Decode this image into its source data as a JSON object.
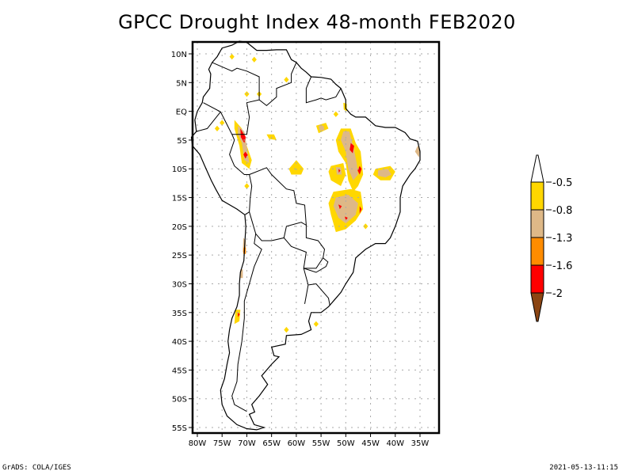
{
  "title": "GPCC Drought Index 48-month FEB2020",
  "footer": {
    "left": "GrADS: COLA/IGES",
    "right": "2021-05-13-11:15"
  },
  "map": {
    "region": "South America",
    "lon_range": [
      -81,
      -31
    ],
    "lat_range": [
      -57,
      12
    ],
    "y_ticks": [
      "10N",
      "5N",
      "EQ",
      "5S",
      "10S",
      "15S",
      "20S",
      "25S",
      "30S",
      "35S",
      "40S",
      "45S",
      "50S",
      "55S"
    ],
    "y_tick_values": [
      10,
      5,
      0,
      -5,
      -10,
      -15,
      -20,
      -25,
      -30,
      -35,
      -40,
      -45,
      -50,
      -55
    ],
    "x_ticks": [
      "80W",
      "75W",
      "70W",
      "65W",
      "60W",
      "55W",
      "50W",
      "45W",
      "40W",
      "35W"
    ],
    "x_tick_values": [
      -80,
      -75,
      -70,
      -65,
      -60,
      -55,
      -50,
      -45,
      -40,
      -35
    ],
    "grid": "dotted"
  },
  "colorbar": {
    "labels": [
      "-0.5",
      "-0.8",
      "-1.3",
      "-1.6",
      "-2"
    ],
    "colors": {
      "above_-0.5": "#ffffff",
      "-0.8_to_-0.5": "#ffd700",
      "-1.3_to_-0.8": "#deb887",
      "-1.6_to_-1.3": "#ff8c00",
      "-2_to_-1.6": "#ff0000",
      "below_-2": "#8b4513"
    }
  },
  "drought_areas": [
    {
      "lon": -70.5,
      "lat": -4.5,
      "class": "red"
    },
    {
      "lon": -70.0,
      "lat": -7.5,
      "class": "red"
    },
    {
      "lon": -48.5,
      "lat": -6.5,
      "class": "red"
    },
    {
      "lon": -47.0,
      "lat": -10.5,
      "class": "red"
    },
    {
      "lon": -51.5,
      "lat": -10.0,
      "class": "red"
    },
    {
      "lon": -51.0,
      "lat": -16.5,
      "class": "red"
    },
    {
      "lon": -50.0,
      "lat": -18.5,
      "class": "red"
    },
    {
      "lon": -47.0,
      "lat": -17.0,
      "class": "red"
    },
    {
      "lon": -72.0,
      "lat": -36.0,
      "class": "red"
    },
    {
      "lon": -70.5,
      "lat": -24.0,
      "class": "orange"
    }
  ]
}
